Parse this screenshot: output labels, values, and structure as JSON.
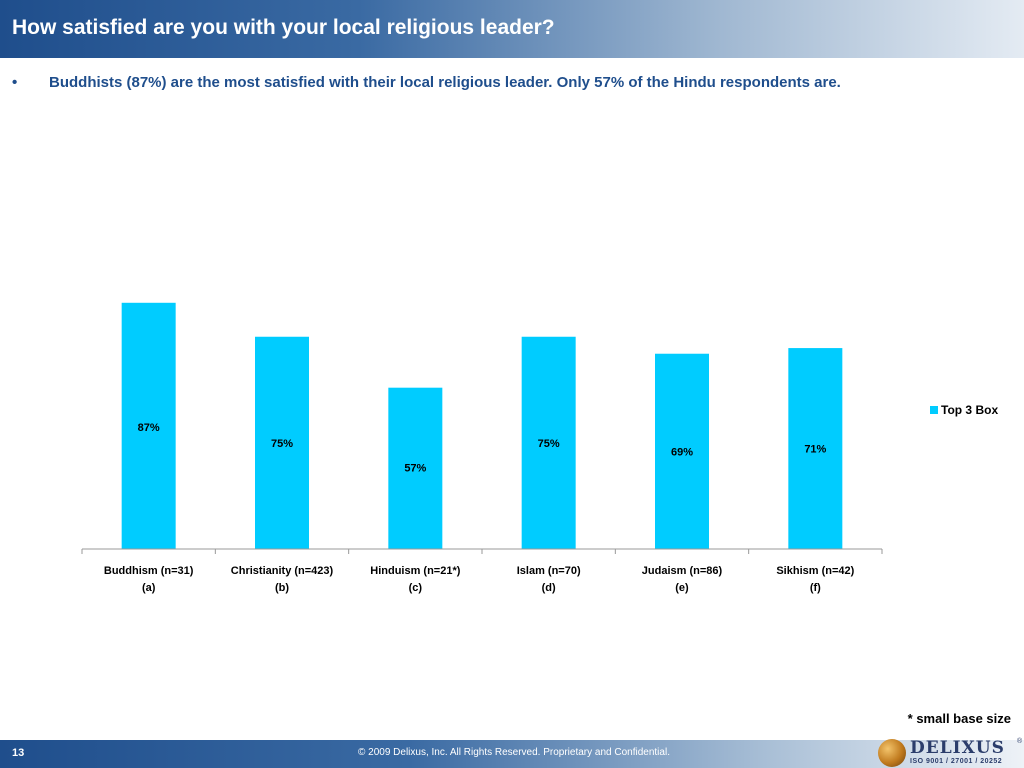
{
  "header": {
    "title": "How satisfied are you with your local religious leader?"
  },
  "bullet": {
    "marker": "•",
    "text": "Buddhists (87%) are the most satisfied with their local religious leader.  Only 57% of the Hindu respondents are."
  },
  "chart_data": {
    "type": "bar",
    "categories": [
      "Buddhism (n=31)",
      "Christianity (n=423)",
      "Hinduism (n=21*)",
      "Islam (n=70)",
      "Judaism (n=86)",
      "Sikhism (n=42)"
    ],
    "category_sublabels": [
      "(a)",
      "(b)",
      "(c)",
      "(d)",
      "(e)",
      "(f)"
    ],
    "series": [
      {
        "name": "Top 3 Box",
        "values": [
          87,
          75,
          57,
          75,
          69,
          71
        ]
      }
    ],
    "data_labels": [
      "87%",
      "75%",
      "57%",
      "75%",
      "69%",
      "71%"
    ],
    "ylim": [
      0,
      100
    ],
    "bar_color": "#00ccff",
    "grid": false,
    "legend_position": "right"
  },
  "legend": {
    "label": "Top 3 Box"
  },
  "footnote": "* small base size",
  "footer": {
    "page_number": "13",
    "copyright": "© 2009 Delixus, Inc. All Rights Reserved. Proprietary and Confidential."
  },
  "logo": {
    "name": "DELIXUS",
    "registered": "®",
    "iso": "ISO 9001 / 27001 / 20252"
  }
}
